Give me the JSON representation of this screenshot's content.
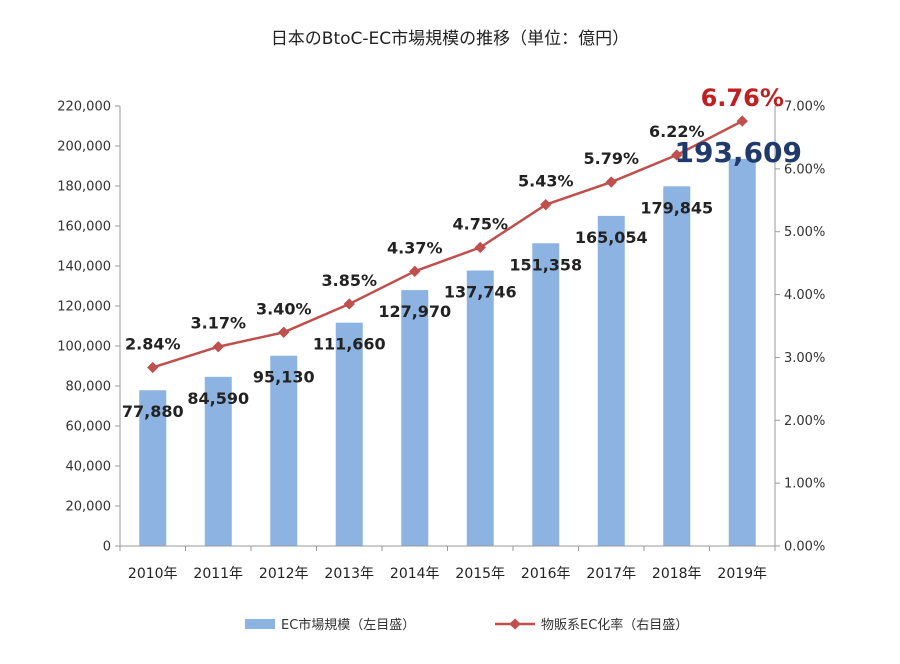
{
  "chart_data": {
    "type": "bar",
    "title": "日本のBtoC-EC市場規模の推移（単位：億円）",
    "categories": [
      "2010年",
      "2011年",
      "2012年",
      "2013年",
      "2014年",
      "2015年",
      "2016年",
      "2017年",
      "2018年",
      "2019年"
    ],
    "series": [
      {
        "name": "EC市場規模（左目盛）",
        "type": "bar",
        "axis": "left",
        "color": "#8db3e2",
        "values": [
          77880,
          84590,
          95130,
          111660,
          127970,
          137746,
          151358,
          165054,
          179845,
          193609
        ],
        "labels": [
          "77,880",
          "84,590",
          "95,130",
          "111,660",
          "127,970",
          "137,746",
          "151,358",
          "165,054",
          "179,845",
          "193,609"
        ]
      },
      {
        "name": "物販系EC化率（右目盛）",
        "type": "line",
        "axis": "right",
        "color": "#c0504d",
        "values": [
          2.84,
          3.17,
          3.4,
          3.85,
          4.37,
          4.75,
          5.43,
          5.79,
          6.22,
          6.76
        ],
        "labels": [
          "2.84%",
          "3.17%",
          "3.40%",
          "3.85%",
          "4.37%",
          "4.75%",
          "5.43%",
          "5.79%",
          "6.22%",
          "6.76%"
        ]
      }
    ],
    "y_left": {
      "min": 0,
      "max": 220000,
      "ticks": [
        "0",
        "20,000",
        "40,000",
        "60,000",
        "80,000",
        "100,000",
        "120,000",
        "140,000",
        "160,000",
        "180,000",
        "200,000",
        "220,000"
      ]
    },
    "y_right": {
      "min": 0,
      "max": 7,
      "ticks": [
        "0.00%",
        "1.00%",
        "2.00%",
        "3.00%",
        "4.00%",
        "5.00%",
        "6.00%",
        "7.00%"
      ]
    },
    "grid": false,
    "legend_position": "bottom-center",
    "highlight": {
      "bar_color": "#1f3a6b",
      "line_color": "#c0201f"
    }
  }
}
